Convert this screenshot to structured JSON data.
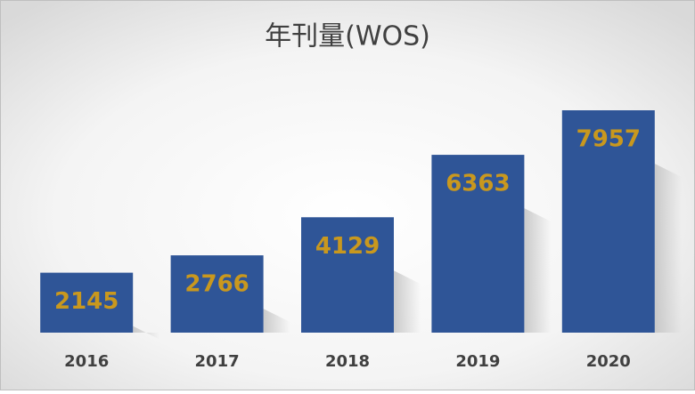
{
  "chart_data": {
    "type": "bar",
    "title": "年刊量(WOS)",
    "categories": [
      "2016",
      "2017",
      "2018",
      "2019",
      "2020"
    ],
    "values": [
      2145,
      2766,
      4129,
      6363,
      7957
    ],
    "color": "#2f5597",
    "label_color": "#c9981e"
  }
}
